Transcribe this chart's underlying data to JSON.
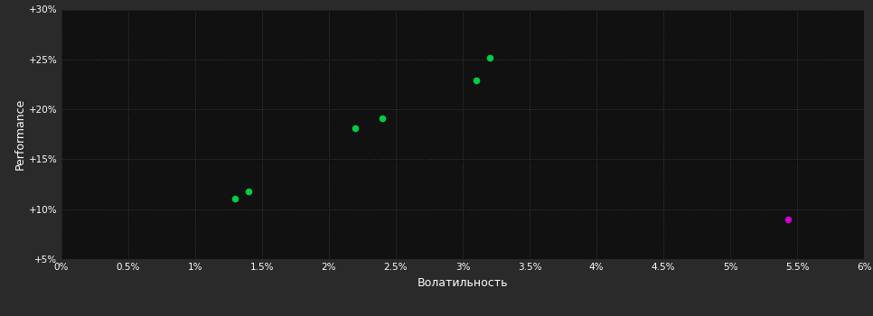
{
  "figure_bg_color": "#2a2a2a",
  "plot_bg_color": "#111111",
  "grid_color": "#444444",
  "text_color": "#ffffff",
  "xlabel": "Волатильность",
  "ylabel": "Performance",
  "xlim": [
    0.0,
    0.06
  ],
  "ylim": [
    0.05,
    0.3
  ],
  "xticks": [
    0.0,
    0.005,
    0.01,
    0.015,
    0.02,
    0.025,
    0.03,
    0.035,
    0.04,
    0.045,
    0.05,
    0.055,
    0.06
  ],
  "yticks": [
    0.05,
    0.1,
    0.15,
    0.2,
    0.25,
    0.3
  ],
  "xtick_labels": [
    "0%",
    "0.5%",
    "1%",
    "1.5%",
    "2%",
    "2.5%",
    "3%",
    "3.5%",
    "4%",
    "4.5%",
    "5%",
    "5.5%",
    "6%"
  ],
  "ytick_labels": [
    "+5%",
    "+10%",
    "+15%",
    "+20%",
    "+25%",
    "+30%"
  ],
  "green_points": [
    [
      0.013,
      0.111
    ],
    [
      0.014,
      0.118
    ],
    [
      0.022,
      0.181
    ],
    [
      0.024,
      0.191
    ],
    [
      0.031,
      0.229
    ],
    [
      0.032,
      0.252
    ]
  ],
  "magenta_points": [
    [
      0.0543,
      0.09
    ]
  ],
  "green_color": "#00cc44",
  "magenta_color": "#cc00cc",
  "marker_size": 20
}
